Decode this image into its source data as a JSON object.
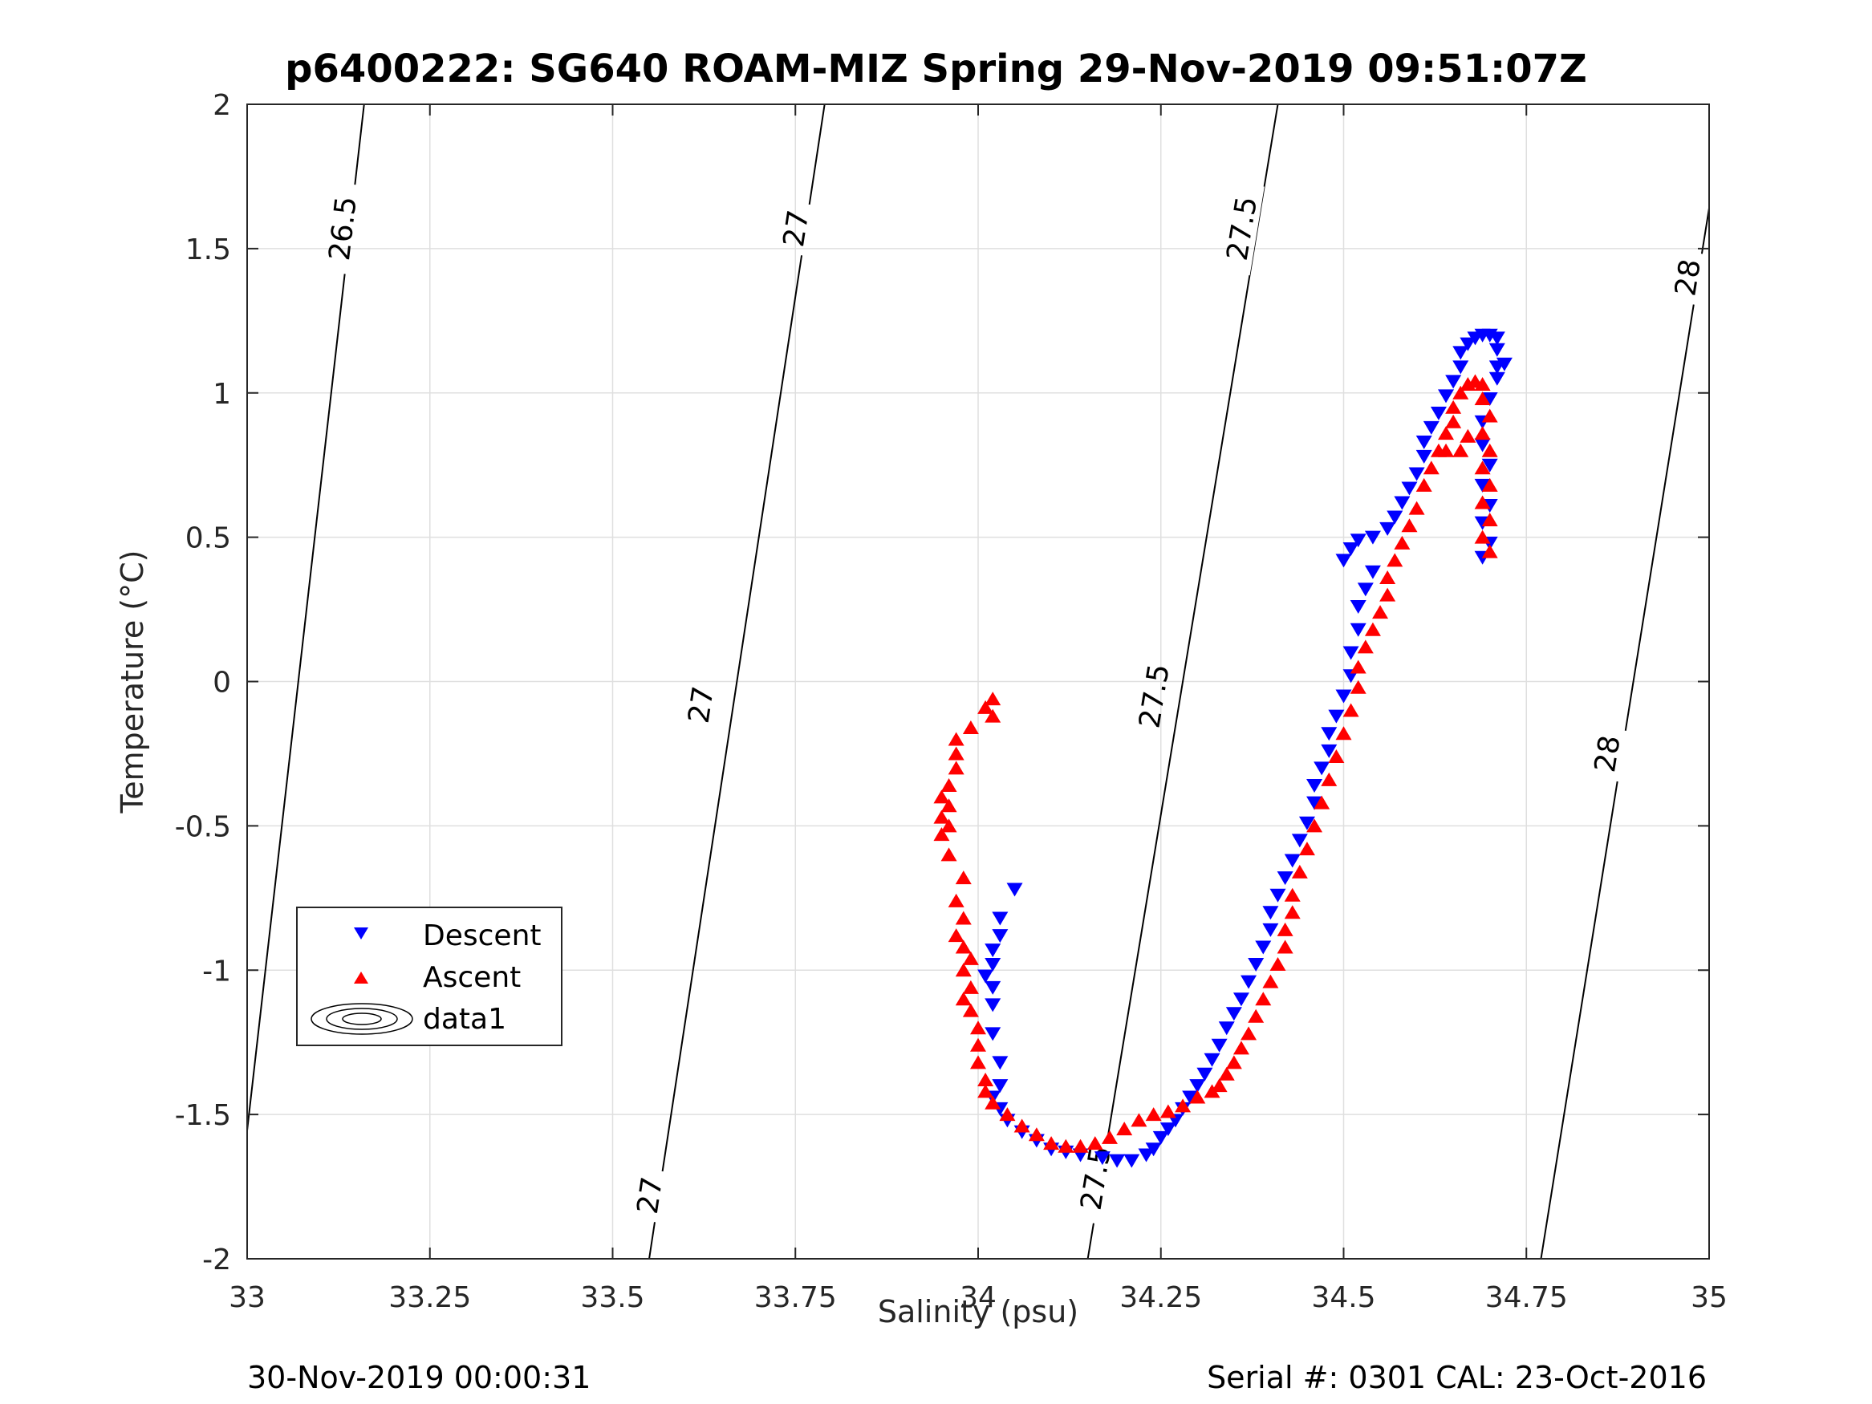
{
  "header": {
    "title": "p6400222: SG640 ROAM-MIZ Spring 29-Nov-2019 09:51:07Z"
  },
  "footer": {
    "timestamp": "30-Nov-2019 00:00:31",
    "serial": "Serial #: 0301  CAL: 23-Oct-2016"
  },
  "colors": {
    "descent": "#0000ff",
    "ascent": "#ff0000",
    "contour": "#000000",
    "grid": "#dfdfdf"
  },
  "chart_data": {
    "type": "scatter",
    "title": "p6400222: SG640 ROAM-MIZ Spring 29-Nov-2019 09:51:07Z",
    "xlabel": "Salinity (psu)",
    "ylabel": "Temperature (°C)",
    "xlim": [
      33,
      35
    ],
    "ylim": [
      -2,
      2
    ],
    "xticks": [
      33,
      33.25,
      33.5,
      33.75,
      34,
      34.25,
      34.5,
      34.75,
      35
    ],
    "xtick_labels": [
      "33",
      "33.25",
      "33.5",
      "33.75",
      "34",
      "34.25",
      "34.5",
      "34.75",
      "35"
    ],
    "yticks": [
      -2,
      -1.5,
      -1,
      -0.5,
      0,
      0.5,
      1,
      1.5,
      2
    ],
    "ytick_labels": [
      "-2",
      "-1.5",
      "-1",
      "-0.5",
      "0",
      "0.5",
      "1",
      "1.5",
      "2"
    ],
    "grid": true,
    "legend": {
      "position": "lower-left",
      "entries": [
        "Descent",
        "Ascent",
        "data1"
      ]
    },
    "series": [
      {
        "name": "Descent",
        "marker": "down-triangle",
        "color": "#0000ff",
        "points": [
          [
            34.05,
            -0.72
          ],
          [
            34.03,
            -0.82
          ],
          [
            34.03,
            -0.88
          ],
          [
            34.02,
            -0.93
          ],
          [
            34.02,
            -0.98
          ],
          [
            34.01,
            -1.02
          ],
          [
            34.02,
            -1.06
          ],
          [
            34.02,
            -1.12
          ],
          [
            34.02,
            -1.22
          ],
          [
            34.03,
            -1.32
          ],
          [
            34.03,
            -1.4
          ],
          [
            34.02,
            -1.44
          ],
          [
            34.03,
            -1.48
          ],
          [
            34.04,
            -1.52
          ],
          [
            34.06,
            -1.56
          ],
          [
            34.08,
            -1.59
          ],
          [
            34.1,
            -1.62
          ],
          [
            34.12,
            -1.63
          ],
          [
            34.14,
            -1.64
          ],
          [
            34.17,
            -1.65
          ],
          [
            34.19,
            -1.66
          ],
          [
            34.21,
            -1.66
          ],
          [
            34.23,
            -1.64
          ],
          [
            34.24,
            -1.62
          ],
          [
            34.25,
            -1.58
          ],
          [
            34.26,
            -1.55
          ],
          [
            34.27,
            -1.52
          ],
          [
            34.28,
            -1.48
          ],
          [
            34.29,
            -1.44
          ],
          [
            34.3,
            -1.4
          ],
          [
            34.31,
            -1.36
          ],
          [
            34.32,
            -1.31
          ],
          [
            34.33,
            -1.26
          ],
          [
            34.34,
            -1.2
          ],
          [
            34.35,
            -1.15
          ],
          [
            34.36,
            -1.1
          ],
          [
            34.37,
            -1.04
          ],
          [
            34.38,
            -0.98
          ],
          [
            34.39,
            -0.92
          ],
          [
            34.4,
            -0.86
          ],
          [
            34.4,
            -0.8
          ],
          [
            34.41,
            -0.74
          ],
          [
            34.42,
            -0.68
          ],
          [
            34.43,
            -0.62
          ],
          [
            34.44,
            -0.55
          ],
          [
            34.45,
            -0.49
          ],
          [
            34.46,
            -0.42
          ],
          [
            34.46,
            -0.36
          ],
          [
            34.47,
            -0.3
          ],
          [
            34.48,
            -0.24
          ],
          [
            34.48,
            -0.18
          ],
          [
            34.49,
            -0.12
          ],
          [
            34.5,
            -0.05
          ],
          [
            34.51,
            0.02
          ],
          [
            34.51,
            0.1
          ],
          [
            34.52,
            0.18
          ],
          [
            34.52,
            0.26
          ],
          [
            34.53,
            0.32
          ],
          [
            34.54,
            0.38
          ],
          [
            34.5,
            0.42
          ],
          [
            34.51,
            0.46
          ],
          [
            34.52,
            0.49
          ],
          [
            34.54,
            0.5
          ],
          [
            34.56,
            0.53
          ],
          [
            34.57,
            0.57
          ],
          [
            34.58,
            0.62
          ],
          [
            34.59,
            0.67
          ],
          [
            34.6,
            0.72
          ],
          [
            34.61,
            0.78
          ],
          [
            34.61,
            0.83
          ],
          [
            34.62,
            0.88
          ],
          [
            34.63,
            0.93
          ],
          [
            34.64,
            0.99
          ],
          [
            34.65,
            1.04
          ],
          [
            34.66,
            1.09
          ],
          [
            34.66,
            1.14
          ],
          [
            34.67,
            1.17
          ],
          [
            34.68,
            1.19
          ],
          [
            34.69,
            1.2
          ],
          [
            34.7,
            1.2
          ],
          [
            34.71,
            1.19
          ],
          [
            34.71,
            1.15
          ],
          [
            34.72,
            1.1
          ],
          [
            34.71,
            1.05
          ],
          [
            34.7,
            0.98
          ],
          [
            34.69,
            0.9
          ],
          [
            34.69,
            0.82
          ],
          [
            34.7,
            0.75
          ],
          [
            34.69,
            0.68
          ],
          [
            34.7,
            0.61
          ],
          [
            34.69,
            0.55
          ],
          [
            34.7,
            0.48
          ],
          [
            34.69,
            0.43
          ],
          [
            34.71,
            1.09
          ]
        ]
      },
      {
        "name": "Ascent",
        "marker": "up-triangle",
        "color": "#ff0000",
        "points": [
          [
            34.02,
            -0.06
          ],
          [
            34.01,
            -0.09
          ],
          [
            34.02,
            -0.12
          ],
          [
            33.99,
            -0.16
          ],
          [
            33.97,
            -0.2
          ],
          [
            33.97,
            -0.25
          ],
          [
            33.97,
            -0.3
          ],
          [
            33.96,
            -0.36
          ],
          [
            33.95,
            -0.4
          ],
          [
            33.96,
            -0.43
          ],
          [
            33.95,
            -0.47
          ],
          [
            33.96,
            -0.5
          ],
          [
            33.95,
            -0.53
          ],
          [
            33.96,
            -0.6
          ],
          [
            33.98,
            -0.68
          ],
          [
            33.97,
            -0.76
          ],
          [
            33.98,
            -0.82
          ],
          [
            33.97,
            -0.88
          ],
          [
            33.98,
            -0.92
          ],
          [
            33.99,
            -0.96
          ],
          [
            33.98,
            -1.0
          ],
          [
            33.99,
            -1.06
          ],
          [
            33.98,
            -1.1
          ],
          [
            33.99,
            -1.14
          ],
          [
            34.0,
            -1.2
          ],
          [
            34.0,
            -1.26
          ],
          [
            34.0,
            -1.32
          ],
          [
            34.01,
            -1.38
          ],
          [
            34.01,
            -1.42
          ],
          [
            34.02,
            -1.46
          ],
          [
            34.04,
            -1.5
          ],
          [
            34.06,
            -1.54
          ],
          [
            34.08,
            -1.57
          ],
          [
            34.1,
            -1.6
          ],
          [
            34.12,
            -1.61
          ],
          [
            34.14,
            -1.61
          ],
          [
            34.16,
            -1.6
          ],
          [
            34.18,
            -1.58
          ],
          [
            34.2,
            -1.55
          ],
          [
            34.22,
            -1.52
          ],
          [
            34.24,
            -1.5
          ],
          [
            34.26,
            -1.49
          ],
          [
            34.28,
            -1.47
          ],
          [
            34.3,
            -1.44
          ],
          [
            34.32,
            -1.42
          ],
          [
            34.33,
            -1.4
          ],
          [
            34.34,
            -1.36
          ],
          [
            34.35,
            -1.32
          ],
          [
            34.36,
            -1.27
          ],
          [
            34.37,
            -1.22
          ],
          [
            34.38,
            -1.16
          ],
          [
            34.39,
            -1.1
          ],
          [
            34.4,
            -1.04
          ],
          [
            34.41,
            -0.98
          ],
          [
            34.42,
            -0.92
          ],
          [
            34.42,
            -0.86
          ],
          [
            34.43,
            -0.8
          ],
          [
            34.43,
            -0.74
          ],
          [
            34.44,
            -0.66
          ],
          [
            34.45,
            -0.58
          ],
          [
            34.46,
            -0.5
          ],
          [
            34.47,
            -0.42
          ],
          [
            34.48,
            -0.34
          ],
          [
            34.49,
            -0.26
          ],
          [
            34.5,
            -0.18
          ],
          [
            34.51,
            -0.1
          ],
          [
            34.52,
            -0.02
          ],
          [
            34.52,
            0.05
          ],
          [
            34.53,
            0.12
          ],
          [
            34.54,
            0.18
          ],
          [
            34.55,
            0.24
          ],
          [
            34.56,
            0.3
          ],
          [
            34.56,
            0.36
          ],
          [
            34.57,
            0.42
          ],
          [
            34.58,
            0.48
          ],
          [
            34.59,
            0.54
          ],
          [
            34.6,
            0.6
          ],
          [
            34.61,
            0.68
          ],
          [
            34.62,
            0.74
          ],
          [
            34.63,
            0.8
          ],
          [
            34.64,
            0.86
          ],
          [
            34.65,
            0.9
          ],
          [
            34.65,
            0.95
          ],
          [
            34.66,
            1.0
          ],
          [
            34.67,
            1.03
          ],
          [
            34.68,
            1.04
          ],
          [
            34.69,
            1.03
          ],
          [
            34.69,
            0.98
          ],
          [
            34.7,
            0.92
          ],
          [
            34.69,
            0.86
          ],
          [
            34.7,
            0.8
          ],
          [
            34.69,
            0.74
          ],
          [
            34.7,
            0.68
          ],
          [
            34.69,
            0.62
          ],
          [
            34.7,
            0.56
          ],
          [
            34.69,
            0.5
          ],
          [
            34.7,
            0.45
          ],
          [
            34.64,
            0.8
          ],
          [
            34.66,
            0.8
          ],
          [
            34.67,
            0.85
          ]
        ]
      }
    ],
    "contours": {
      "name": "data1",
      "type": "isopycnal",
      "lines": [
        {
          "label": "26.5",
          "from": [
            32.98,
            -2.0
          ],
          "to": [
            33.16,
            2.0
          ],
          "labels_at": [
            [
              33.13,
              1.57
            ]
          ]
        },
        {
          "label": "27",
          "from": [
            33.55,
            -2.0
          ],
          "to": [
            33.79,
            2.0
          ],
          "labels_at": [
            [
              33.75,
              1.57
            ],
            [
              33.62,
              -0.08
            ],
            [
              33.55,
              -1.78
            ]
          ]
        },
        {
          "label": "27.5",
          "from": [
            34.15,
            -2.0
          ],
          "to": [
            34.41,
            2.0
          ],
          "labels_at": [
            [
              34.36,
              1.57
            ],
            [
              34.24,
              -0.05
            ],
            [
              34.16,
              -1.72
            ]
          ]
        },
        {
          "label": "28",
          "from": [
            34.77,
            -2.0
          ],
          "to": [
            35.0,
            1.64
          ],
          "labels_at": [
            [
              34.97,
              1.4
            ],
            [
              34.86,
              -0.25
            ]
          ]
        }
      ]
    }
  }
}
